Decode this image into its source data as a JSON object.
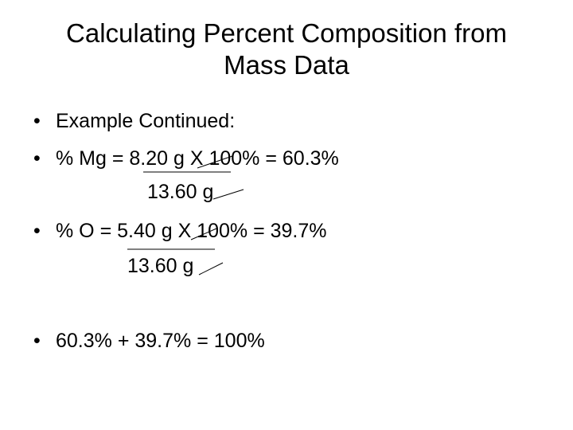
{
  "title": "Calculating Percent Composition from Mass Data",
  "bullets": [
    {
      "text": "Example Continued:"
    },
    {
      "text": "% Mg = 8.20 g X 100% = 60.3%",
      "denominator": "13.60 g"
    },
    {
      "text": "% O = 5.40 g X 100% = 39.7%",
      "denominator": "13.60 g"
    },
    {
      "text": "60.3% + 39.7% = 100%"
    }
  ]
}
